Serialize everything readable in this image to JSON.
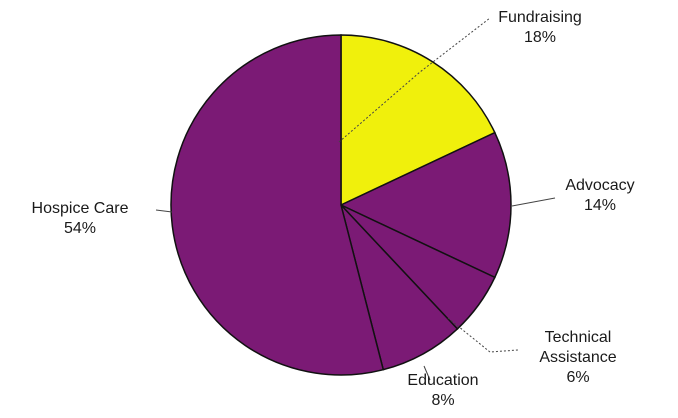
{
  "chart_data": {
    "type": "pie",
    "title": "",
    "start_angle_deg": 0,
    "direction": "clockwise",
    "legend": "none",
    "slices": [
      {
        "label": "Fundraising",
        "value": 18,
        "value_label": "18%",
        "color": "#f0f00c"
      },
      {
        "label": "Advocacy",
        "value": 14,
        "value_label": "14%",
        "color": "#7b1a75"
      },
      {
        "label": "Technical Assistance",
        "label_lines": [
          "Technical",
          "Assistance"
        ],
        "value": 6,
        "value_label": "6%",
        "color": "#7b1a75"
      },
      {
        "label": "Education",
        "value": 8,
        "value_label": "8%",
        "color": "#7b1a75"
      },
      {
        "label": "Hospice Care",
        "value": 54,
        "value_label": "54%",
        "color": "#7b1a75"
      }
    ]
  }
}
